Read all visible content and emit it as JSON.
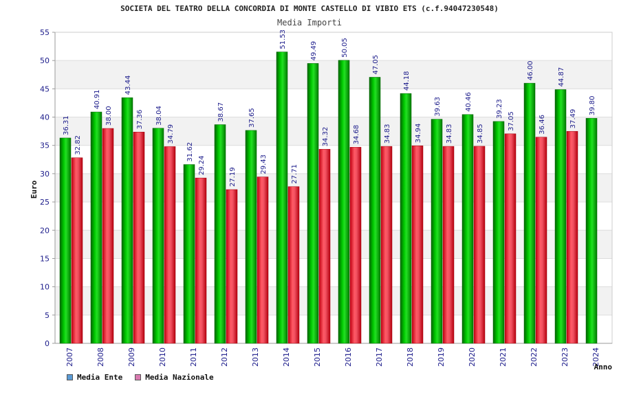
{
  "chart_data": {
    "type": "bar",
    "title": "SOCIETA DEL TEATRO DELLA CONCORDIA DI MONTE CASTELLO DI VIBIO ETS (c.f.94047230548)",
    "subtitle": "Media Importi",
    "ylabel": "Euro",
    "xlabel": "Anno",
    "ylim": [
      0,
      55
    ],
    "yticks": [
      0,
      5,
      10,
      15,
      20,
      25,
      30,
      35,
      40,
      45,
      50,
      55
    ],
    "grid": true,
    "legend_position": "bottom-left",
    "categories": [
      "2007",
      "2008",
      "2009",
      "2010",
      "2011",
      "2012",
      "2013",
      "2014",
      "2015",
      "2016",
      "2017",
      "2018",
      "2019",
      "2020",
      "2021",
      "2022",
      "2023",
      "2024"
    ],
    "series": [
      {
        "name": "Media Ente",
        "color": "#00aa00",
        "legend_color": "#5b9bd5",
        "values": [
          36.31,
          40.91,
          43.44,
          38.04,
          31.62,
          38.67,
          37.65,
          51.53,
          49.49,
          50.05,
          47.05,
          44.18,
          39.63,
          40.46,
          39.23,
          46.0,
          44.87,
          39.8
        ],
        "labels": [
          "36.31",
          "40.91",
          "43.44",
          "38.04",
          "31.62",
          "38.67",
          "37.65",
          "51.53",
          "49.49",
          "50.05",
          "47.05",
          "44.18",
          "39.63",
          "40.46",
          "39.23",
          "46.00",
          "44.87",
          "39.80"
        ]
      },
      {
        "name": "Media Nazionale",
        "color": "#e8101c",
        "legend_color": "#d97ab0",
        "values": [
          32.82,
          38.0,
          37.36,
          34.79,
          29.24,
          27.19,
          29.43,
          27.71,
          34.32,
          34.68,
          34.83,
          34.94,
          34.83,
          34.85,
          37.05,
          36.46,
          37.49,
          null
        ],
        "labels": [
          "32.82",
          "38.00",
          "37.36",
          "34.79",
          "29.24",
          "27.19",
          "29.43",
          "27.71",
          "34.32",
          "34.68",
          "34.83",
          "34.94",
          "34.83",
          "34.85",
          "37.05",
          "36.46",
          "37.49",
          null
        ]
      }
    ]
  }
}
